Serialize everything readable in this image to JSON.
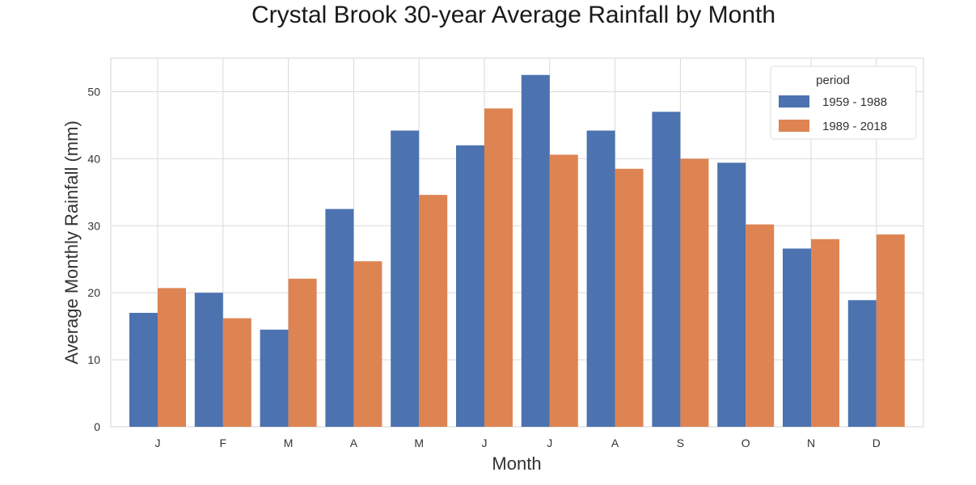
{
  "chart_data": {
    "type": "bar",
    "title": "Crystal Brook  30-year Average Rainfall by Month",
    "xlabel": "Month",
    "ylabel": "Average Monthly Rainfall (mm)",
    "categories": [
      "J",
      "F",
      "M",
      "A",
      "M",
      "J",
      "J",
      "A",
      "S",
      "O",
      "N",
      "D"
    ],
    "ylim": [
      0,
      55
    ],
    "yticks": [
      "0",
      "10",
      "20",
      "30",
      "40",
      "50"
    ],
    "grid": true,
    "legend": {
      "title": "period",
      "placement": "top-right"
    },
    "series": [
      {
        "name": "1959 - 1988",
        "color": "#4c72b0",
        "values": [
          17.0,
          20.0,
          14.5,
          32.5,
          44.2,
          42.0,
          52.5,
          44.2,
          47.0,
          39.4,
          26.6,
          18.9
        ]
      },
      {
        "name": "1989 - 2018",
        "color": "#dd8452",
        "values": [
          20.7,
          16.2,
          22.1,
          24.7,
          34.6,
          47.5,
          40.6,
          38.5,
          40.0,
          30.2,
          28.0,
          28.7
        ]
      }
    ]
  }
}
